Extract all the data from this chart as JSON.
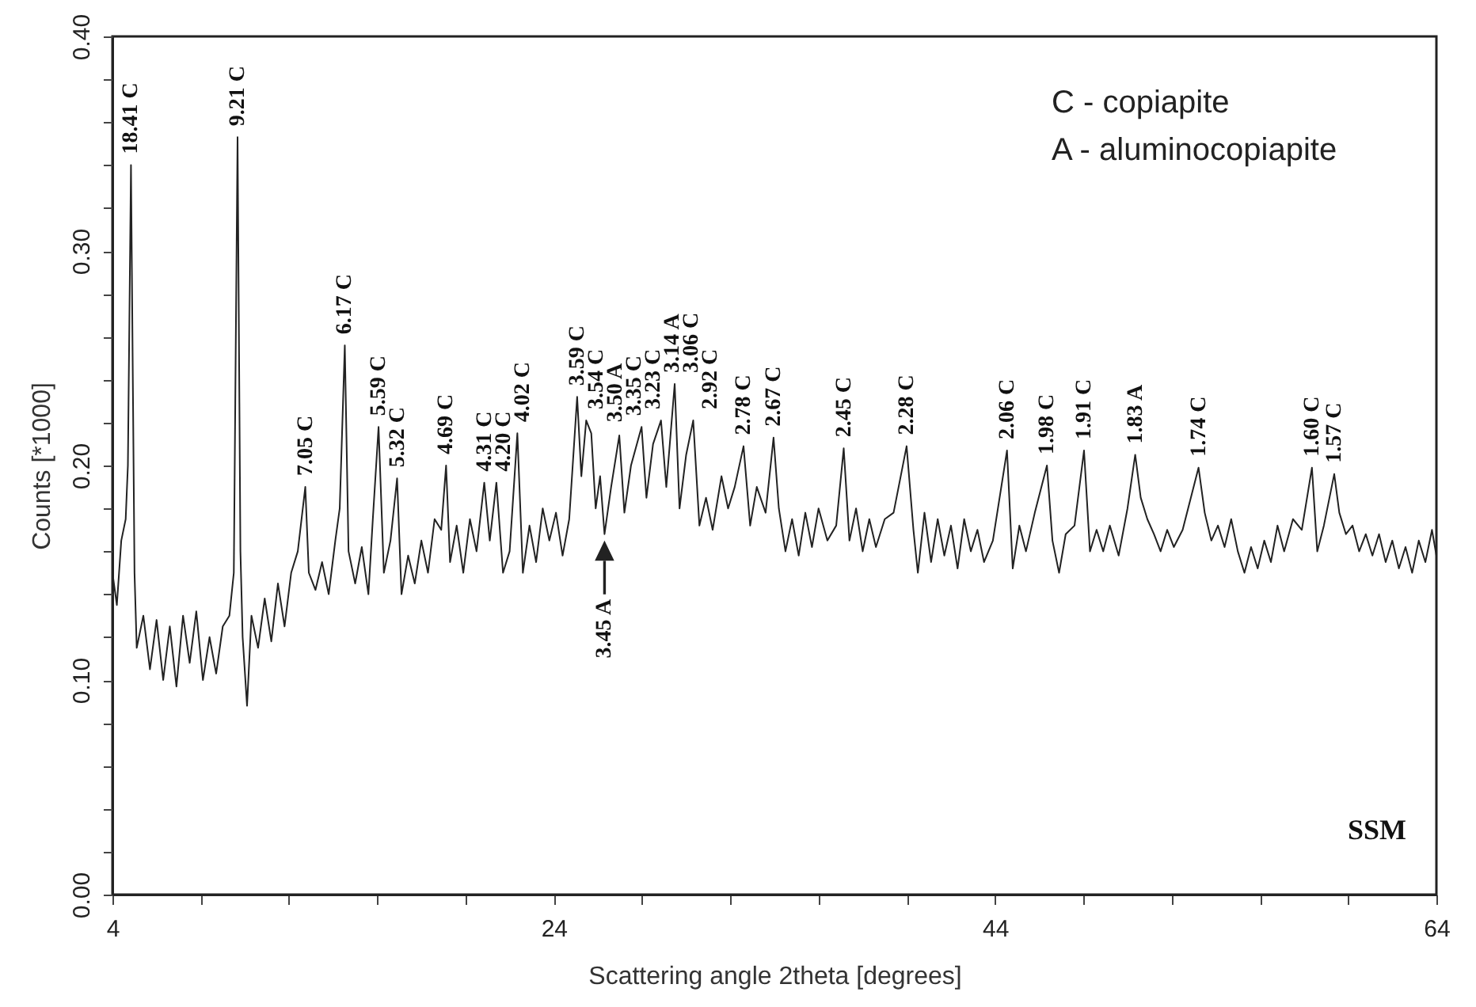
{
  "chart_data": {
    "type": "line",
    "xlabel": "Scattering angle 2theta [degrees]",
    "ylabel": "Counts [*1000]",
    "xlim": [
      4,
      64
    ],
    "ylim": [
      0,
      0.4
    ],
    "xticks": [
      4,
      {
        "value": 8,
        "label": null
      },
      {
        "value": 12,
        "label": null
      },
      {
        "value": 16,
        "label": null
      },
      {
        "value": 20,
        "label": null
      },
      24,
      {
        "value": 28,
        "label": null
      },
      {
        "value": 32,
        "label": null
      },
      {
        "value": 36,
        "label": null
      },
      {
        "value": 40,
        "label": null
      },
      44,
      {
        "value": 48,
        "label": null
      },
      {
        "value": 52,
        "label": null
      },
      {
        "value": 56,
        "label": null
      },
      {
        "value": 60,
        "label": null
      },
      64
    ],
    "yticks": [
      {
        "value": 0,
        "label": "0.00"
      },
      {
        "value": 0.02,
        "label": null
      },
      {
        "value": 0.04,
        "label": null
      },
      {
        "value": 0.06,
        "label": null
      },
      {
        "value": 0.08,
        "label": null
      },
      {
        "value": 0.1,
        "label": "0.10"
      },
      {
        "value": 0.12,
        "label": null
      },
      {
        "value": 0.14,
        "label": null
      },
      {
        "value": 0.16,
        "label": null
      },
      {
        "value": 0.18,
        "label": null
      },
      {
        "value": 0.2,
        "label": "0.20"
      },
      {
        "value": 0.22,
        "label": null
      },
      {
        "value": 0.24,
        "label": null
      },
      {
        "value": 0.26,
        "label": null
      },
      {
        "value": 0.28,
        "label": null
      },
      {
        "value": 0.3,
        "label": "0.30"
      },
      {
        "value": 0.32,
        "label": null
      },
      {
        "value": 0.34,
        "label": null
      },
      {
        "value": 0.36,
        "label": null
      },
      {
        "value": 0.38,
        "label": null
      },
      {
        "value": 0.4,
        "label": "0.40"
      }
    ],
    "x": [
      4.0,
      4.2,
      4.4,
      4.6,
      4.7,
      4.84,
      5.0,
      5.1,
      5.4,
      5.7,
      6.0,
      6.3,
      6.6,
      6.9,
      7.2,
      7.5,
      7.8,
      8.1,
      8.4,
      8.7,
      9.0,
      9.3,
      9.5,
      9.67,
      9.8,
      9.9,
      10.1,
      10.3,
      10.6,
      10.9,
      11.2,
      11.5,
      11.8,
      12.1,
      12.4,
      12.74,
      12.9,
      13.2,
      13.5,
      13.8,
      14.1,
      14.3,
      14.53,
      14.7,
      15.0,
      15.3,
      15.6,
      15.8,
      16.06,
      16.3,
      16.6,
      16.9,
      17.1,
      17.4,
      17.7,
      18.0,
      18.3,
      18.6,
      18.9,
      19.12,
      19.3,
      19.6,
      19.9,
      20.2,
      20.5,
      20.85,
      21.1,
      21.4,
      21.7,
      22.0,
      22.35,
      22.6,
      22.9,
      23.2,
      23.5,
      23.8,
      24.1,
      24.4,
      24.7,
      25.06,
      25.25,
      25.47,
      25.7,
      25.9,
      26.1,
      26.3,
      26.6,
      26.97,
      27.2,
      27.5,
      27.98,
      28.2,
      28.5,
      28.86,
      29.1,
      29.48,
      29.7,
      30.0,
      30.32,
      30.6,
      30.9,
      31.2,
      31.6,
      31.9,
      32.2,
      32.6,
      32.9,
      33.2,
      33.6,
      33.96,
      34.2,
      34.5,
      34.8,
      35.1,
      35.4,
      35.7,
      36.0,
      36.4,
      36.8,
      37.14,
      37.4,
      37.7,
      38.0,
      38.3,
      38.6,
      39.0,
      39.4,
      39.99,
      40.3,
      40.5,
      40.8,
      41.1,
      41.4,
      41.7,
      42.0,
      42.3,
      42.6,
      42.9,
      43.2,
      43.5,
      43.9,
      44.54,
      44.8,
      45.1,
      45.4,
      45.8,
      46.35,
      46.6,
      46.9,
      47.2,
      47.6,
      48.03,
      48.3,
      48.6,
      48.9,
      49.2,
      49.6,
      50.0,
      50.35,
      50.6,
      50.9,
      51.2,
      51.5,
      51.8,
      52.1,
      52.5,
      53.22,
      53.5,
      53.8,
      54.1,
      54.4,
      54.7,
      55.0,
      55.3,
      55.6,
      55.9,
      56.2,
      56.5,
      56.8,
      57.1,
      57.5,
      57.9,
      58.36,
      58.6,
      58.9,
      59.37,
      59.6,
      59.9,
      60.2,
      60.5,
      60.8,
      61.1,
      61.4,
      61.7,
      62.0,
      62.3,
      62.6,
      62.9,
      63.2,
      63.5,
      63.8,
      64.0
    ],
    "series": [
      {
        "color": "#222222",
        "values": [
          0.15,
          0.135,
          0.165,
          0.175,
          0.2,
          0.34,
          0.15,
          0.115,
          0.13,
          0.105,
          0.128,
          0.1,
          0.125,
          0.097,
          0.13,
          0.108,
          0.132,
          0.1,
          0.12,
          0.103,
          0.125,
          0.13,
          0.15,
          0.353,
          0.16,
          0.12,
          0.088,
          0.13,
          0.115,
          0.138,
          0.118,
          0.145,
          0.125,
          0.15,
          0.16,
          0.19,
          0.15,
          0.142,
          0.155,
          0.14,
          0.165,
          0.18,
          0.256,
          0.16,
          0.145,
          0.162,
          0.14,
          0.175,
          0.218,
          0.15,
          0.165,
          0.194,
          0.14,
          0.158,
          0.145,
          0.165,
          0.15,
          0.175,
          0.17,
          0.2,
          0.155,
          0.172,
          0.15,
          0.175,
          0.16,
          0.192,
          0.165,
          0.192,
          0.15,
          0.16,
          0.215,
          0.15,
          0.172,
          0.155,
          0.18,
          0.165,
          0.178,
          0.158,
          0.175,
          0.232,
          0.195,
          0.221,
          0.215,
          0.18,
          0.195,
          0.168,
          0.19,
          0.214,
          0.178,
          0.2,
          0.218,
          0.185,
          0.21,
          0.221,
          0.19,
          0.238,
          0.18,
          0.205,
          0.221,
          0.172,
          0.185,
          0.17,
          0.195,
          0.18,
          0.19,
          0.209,
          0.172,
          0.19,
          0.178,
          0.213,
          0.18,
          0.16,
          0.175,
          0.158,
          0.178,
          0.162,
          0.18,
          0.165,
          0.172,
          0.208,
          0.165,
          0.18,
          0.16,
          0.175,
          0.162,
          0.175,
          0.178,
          0.209,
          0.17,
          0.15,
          0.178,
          0.155,
          0.175,
          0.158,
          0.172,
          0.152,
          0.175,
          0.16,
          0.17,
          0.155,
          0.165,
          0.207,
          0.152,
          0.172,
          0.16,
          0.178,
          0.2,
          0.165,
          0.15,
          0.168,
          0.172,
          0.207,
          0.16,
          0.17,
          0.16,
          0.172,
          0.158,
          0.18,
          0.205,
          0.185,
          0.175,
          0.168,
          0.16,
          0.17,
          0.162,
          0.17,
          0.199,
          0.178,
          0.165,
          0.172,
          0.162,
          0.175,
          0.16,
          0.15,
          0.162,
          0.152,
          0.165,
          0.155,
          0.172,
          0.16,
          0.175,
          0.17,
          0.199,
          0.16,
          0.172,
          0.196,
          0.178,
          0.168,
          0.172,
          0.16,
          0.168,
          0.158,
          0.168,
          0.155,
          0.165,
          0.152,
          0.162,
          0.15,
          0.165,
          0.155,
          0.17,
          0.158
        ]
      }
    ],
    "annotations": [
      {
        "text": "18.41 C",
        "x": 4.84,
        "y": 0.34
      },
      {
        "text": "9.21 C",
        "x": 9.67,
        "y": 0.353
      },
      {
        "text": "7.05 C",
        "x": 12.74,
        "y": 0.19
      },
      {
        "text": "6.17 C",
        "x": 14.53,
        "y": 0.256
      },
      {
        "text": "5.59 C",
        "x": 16.06,
        "y": 0.218
      },
      {
        "text": "5.32 C",
        "x": 16.9,
        "y": 0.194
      },
      {
        "text": "4.69 C",
        "x": 19.12,
        "y": 0.2
      },
      {
        "text": "4.31 C",
        "x": 20.85,
        "y": 0.192
      },
      {
        "text": "4.20 C",
        "x": 21.4,
        "y": 0.192
      },
      {
        "text": "4.02 C",
        "x": 22.35,
        "y": 0.215
      },
      {
        "text": "3.59 C",
        "x": 25.06,
        "y": 0.232
      },
      {
        "text": "3.54 C",
        "x": 25.47,
        "y": 0.221
      },
      {
        "text": "3.50 A",
        "x": 25.7,
        "y": 0.215
      },
      {
        "text": "3.45 A",
        "x": 26.3,
        "y": 0.168
      },
      {
        "text": "3.35 C",
        "x": 26.97,
        "y": 0.214
      },
      {
        "text": "3.23 C",
        "x": 27.98,
        "y": 0.218
      },
      {
        "text": "3.14 A",
        "x": 28.86,
        "y": 0.221
      },
      {
        "text": "3.06 C",
        "x": 29.48,
        "y": 0.238
      },
      {
        "text": "2.92 C",
        "x": 30.32,
        "y": 0.221
      },
      {
        "text": "2.78 C",
        "x": 32.6,
        "y": 0.209
      },
      {
        "text": "2.67 C",
        "x": 33.96,
        "y": 0.213
      },
      {
        "text": "2.45 C",
        "x": 37.14,
        "y": 0.208
      },
      {
        "text": "2.28 C",
        "x": 39.99,
        "y": 0.209
      },
      {
        "text": "2.06 C",
        "x": 44.54,
        "y": 0.207
      },
      {
        "text": "1.98 C",
        "x": 46.35,
        "y": 0.2
      },
      {
        "text": "1.91 C",
        "x": 48.03,
        "y": 0.207
      },
      {
        "text": "1.83 A",
        "x": 50.35,
        "y": 0.205
      },
      {
        "text": "1.74 C",
        "x": 53.22,
        "y": 0.199
      },
      {
        "text": "1.60 C",
        "x": 58.36,
        "y": 0.199
      },
      {
        "text": "1.57 C",
        "x": 59.37,
        "y": 0.196
      },
      "C - copiapite",
      "A - aluminocopiapite",
      "SSM"
    ]
  }
}
